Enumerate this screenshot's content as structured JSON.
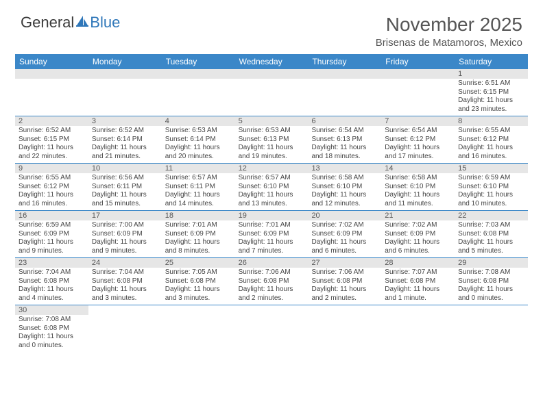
{
  "logo": {
    "text_left": "General",
    "text_right": "Blue"
  },
  "title": "November 2025",
  "location": "Brisenas de Matamoros, Mexico",
  "colors": {
    "header_bg": "#3b87c8",
    "header_text": "#ffffff",
    "strip_bg": "#e6e6e6",
    "border": "#3b87c8",
    "body_text": "#444444",
    "title_text": "#555555",
    "logo_gray": "#3a3a3a",
    "logo_blue": "#2f77b9",
    "page_bg": "#ffffff"
  },
  "day_headers": [
    "Sunday",
    "Monday",
    "Tuesday",
    "Wednesday",
    "Thursday",
    "Friday",
    "Saturday"
  ],
  "weeks": [
    [
      {
        "num": "",
        "lines": []
      },
      {
        "num": "",
        "lines": []
      },
      {
        "num": "",
        "lines": []
      },
      {
        "num": "",
        "lines": []
      },
      {
        "num": "",
        "lines": []
      },
      {
        "num": "",
        "lines": []
      },
      {
        "num": "1",
        "lines": [
          "Sunrise: 6:51 AM",
          "Sunset: 6:15 PM",
          "Daylight: 11 hours and 23 minutes."
        ]
      }
    ],
    [
      {
        "num": "2",
        "lines": [
          "Sunrise: 6:52 AM",
          "Sunset: 6:15 PM",
          "Daylight: 11 hours and 22 minutes."
        ]
      },
      {
        "num": "3",
        "lines": [
          "Sunrise: 6:52 AM",
          "Sunset: 6:14 PM",
          "Daylight: 11 hours and 21 minutes."
        ]
      },
      {
        "num": "4",
        "lines": [
          "Sunrise: 6:53 AM",
          "Sunset: 6:14 PM",
          "Daylight: 11 hours and 20 minutes."
        ]
      },
      {
        "num": "5",
        "lines": [
          "Sunrise: 6:53 AM",
          "Sunset: 6:13 PM",
          "Daylight: 11 hours and 19 minutes."
        ]
      },
      {
        "num": "6",
        "lines": [
          "Sunrise: 6:54 AM",
          "Sunset: 6:13 PM",
          "Daylight: 11 hours and 18 minutes."
        ]
      },
      {
        "num": "7",
        "lines": [
          "Sunrise: 6:54 AM",
          "Sunset: 6:12 PM",
          "Daylight: 11 hours and 17 minutes."
        ]
      },
      {
        "num": "8",
        "lines": [
          "Sunrise: 6:55 AM",
          "Sunset: 6:12 PM",
          "Daylight: 11 hours and 16 minutes."
        ]
      }
    ],
    [
      {
        "num": "9",
        "lines": [
          "Sunrise: 6:55 AM",
          "Sunset: 6:12 PM",
          "Daylight: 11 hours and 16 minutes."
        ]
      },
      {
        "num": "10",
        "lines": [
          "Sunrise: 6:56 AM",
          "Sunset: 6:11 PM",
          "Daylight: 11 hours and 15 minutes."
        ]
      },
      {
        "num": "11",
        "lines": [
          "Sunrise: 6:57 AM",
          "Sunset: 6:11 PM",
          "Daylight: 11 hours and 14 minutes."
        ]
      },
      {
        "num": "12",
        "lines": [
          "Sunrise: 6:57 AM",
          "Sunset: 6:10 PM",
          "Daylight: 11 hours and 13 minutes."
        ]
      },
      {
        "num": "13",
        "lines": [
          "Sunrise: 6:58 AM",
          "Sunset: 6:10 PM",
          "Daylight: 11 hours and 12 minutes."
        ]
      },
      {
        "num": "14",
        "lines": [
          "Sunrise: 6:58 AM",
          "Sunset: 6:10 PM",
          "Daylight: 11 hours and 11 minutes."
        ]
      },
      {
        "num": "15",
        "lines": [
          "Sunrise: 6:59 AM",
          "Sunset: 6:10 PM",
          "Daylight: 11 hours and 10 minutes."
        ]
      }
    ],
    [
      {
        "num": "16",
        "lines": [
          "Sunrise: 6:59 AM",
          "Sunset: 6:09 PM",
          "Daylight: 11 hours and 9 minutes."
        ]
      },
      {
        "num": "17",
        "lines": [
          "Sunrise: 7:00 AM",
          "Sunset: 6:09 PM",
          "Daylight: 11 hours and 9 minutes."
        ]
      },
      {
        "num": "18",
        "lines": [
          "Sunrise: 7:01 AM",
          "Sunset: 6:09 PM",
          "Daylight: 11 hours and 8 minutes."
        ]
      },
      {
        "num": "19",
        "lines": [
          "Sunrise: 7:01 AM",
          "Sunset: 6:09 PM",
          "Daylight: 11 hours and 7 minutes."
        ]
      },
      {
        "num": "20",
        "lines": [
          "Sunrise: 7:02 AM",
          "Sunset: 6:09 PM",
          "Daylight: 11 hours and 6 minutes."
        ]
      },
      {
        "num": "21",
        "lines": [
          "Sunrise: 7:02 AM",
          "Sunset: 6:09 PM",
          "Daylight: 11 hours and 6 minutes."
        ]
      },
      {
        "num": "22",
        "lines": [
          "Sunrise: 7:03 AM",
          "Sunset: 6:08 PM",
          "Daylight: 11 hours and 5 minutes."
        ]
      }
    ],
    [
      {
        "num": "23",
        "lines": [
          "Sunrise: 7:04 AM",
          "Sunset: 6:08 PM",
          "Daylight: 11 hours and 4 minutes."
        ]
      },
      {
        "num": "24",
        "lines": [
          "Sunrise: 7:04 AM",
          "Sunset: 6:08 PM",
          "Daylight: 11 hours and 3 minutes."
        ]
      },
      {
        "num": "25",
        "lines": [
          "Sunrise: 7:05 AM",
          "Sunset: 6:08 PM",
          "Daylight: 11 hours and 3 minutes."
        ]
      },
      {
        "num": "26",
        "lines": [
          "Sunrise: 7:06 AM",
          "Sunset: 6:08 PM",
          "Daylight: 11 hours and 2 minutes."
        ]
      },
      {
        "num": "27",
        "lines": [
          "Sunrise: 7:06 AM",
          "Sunset: 6:08 PM",
          "Daylight: 11 hours and 2 minutes."
        ]
      },
      {
        "num": "28",
        "lines": [
          "Sunrise: 7:07 AM",
          "Sunset: 6:08 PM",
          "Daylight: 11 hours and 1 minute."
        ]
      },
      {
        "num": "29",
        "lines": [
          "Sunrise: 7:08 AM",
          "Sunset: 6:08 PM",
          "Daylight: 11 hours and 0 minutes."
        ]
      }
    ],
    [
      {
        "num": "30",
        "lines": [
          "Sunrise: 7:08 AM",
          "Sunset: 6:08 PM",
          "Daylight: 11 hours and 0 minutes."
        ]
      },
      {
        "num": "",
        "lines": []
      },
      {
        "num": "",
        "lines": []
      },
      {
        "num": "",
        "lines": []
      },
      {
        "num": "",
        "lines": []
      },
      {
        "num": "",
        "lines": []
      },
      {
        "num": "",
        "lines": []
      }
    ]
  ]
}
